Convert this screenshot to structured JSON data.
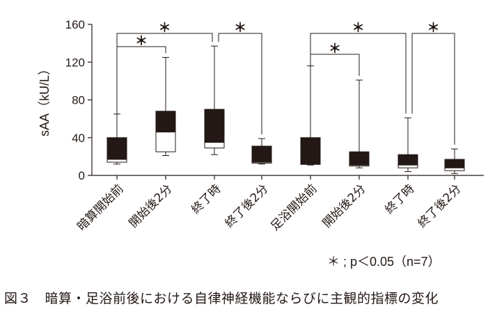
{
  "chart_data": {
    "type": "box",
    "ylabel": "sAA（kU/L）",
    "ylim": [
      0,
      160
    ],
    "yticks": [
      "0",
      "40",
      "80",
      "120",
      "160"
    ],
    "categories": [
      "暗算開始前",
      "開始後2分",
      "終了時",
      "終了後2分",
      "足浴開始前",
      "開始後2分",
      "終了時",
      "終了後2分"
    ],
    "boxes": [
      {
        "min": 12,
        "q1": 14,
        "median": 17,
        "q3": 40,
        "max": 65
      },
      {
        "min": 21,
        "q1": 25,
        "median": 46,
        "q3": 68,
        "max": 125
      },
      {
        "min": 22,
        "q1": 29,
        "median": 35,
        "q3": 70,
        "max": 137
      },
      {
        "min": 12,
        "q1": 13,
        "median": 14,
        "q3": 31,
        "max": 39
      },
      {
        "min": 11,
        "q1": 12,
        "median": 12,
        "q3": 40,
        "max": 116
      },
      {
        "min": 8,
        "q1": 10,
        "median": 11,
        "q3": 25,
        "max": 101
      },
      {
        "min": 4,
        "q1": 8,
        "median": 11,
        "q3": 22,
        "max": 61
      },
      {
        "min": 2,
        "q1": 5,
        "median": 8,
        "q3": 17,
        "max": 28
      }
    ],
    "significance": [
      {
        "from": 0,
        "to": 2,
        "label": "＊"
      },
      {
        "from": 0,
        "to": 1,
        "label": "＊"
      },
      {
        "from": 2,
        "to": 3,
        "label": "＊"
      },
      {
        "from": 4,
        "to": 6,
        "label": "＊"
      },
      {
        "from": 4,
        "to": 5,
        "label": "＊"
      },
      {
        "from": 6,
        "to": 7,
        "label": "＊"
      }
    ],
    "note": "＊ ; p＜0.05（n=7）"
  },
  "caption": "図３　暗算・足浴前後における自律神経機能ならびに主観的指標の変化",
  "colors": {
    "ink": "#231815",
    "box_upper": "#231815",
    "box_lower": "#ffffff"
  }
}
